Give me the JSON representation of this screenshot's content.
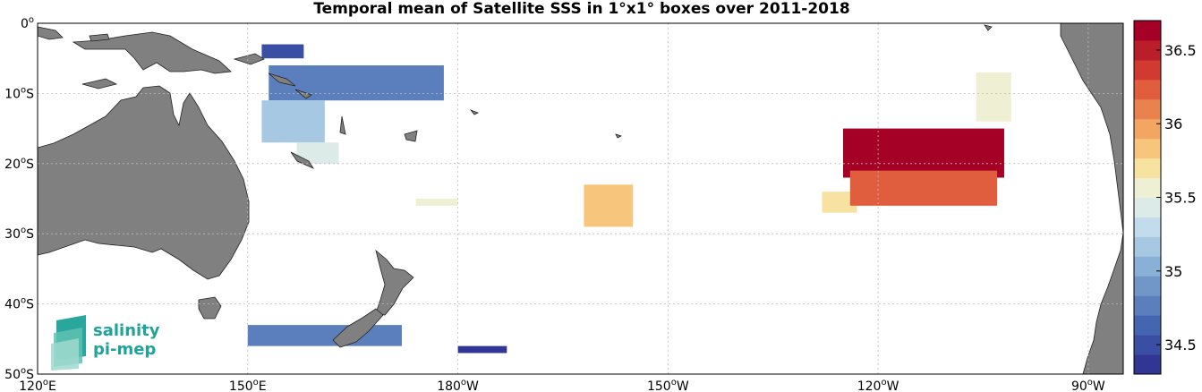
{
  "title": "Temporal mean of Satellite SSS in 1°x1° boxes over 2011-2018",
  "map": {
    "lon_range": [
      120,
      275
    ],
    "lat_range": [
      -50,
      0
    ],
    "lon_ticks": [
      {
        "lon": 120,
        "label": "120",
        "suffix": "E"
      },
      {
        "lon": 150,
        "label": "150",
        "suffix": "E"
      },
      {
        "lon": 180,
        "label": "180",
        "suffix": "W"
      },
      {
        "lon": 210,
        "label": "150",
        "suffix": "W"
      },
      {
        "lon": 240,
        "label": "120",
        "suffix": "W"
      },
      {
        "lon": 270,
        "label": "90",
        "suffix": "W"
      }
    ],
    "lat_ticks": [
      {
        "lat": 0,
        "label": "0",
        "suffix": ""
      },
      {
        "lat": -10,
        "label": "10",
        "suffix": "S"
      },
      {
        "lat": -20,
        "label": "20",
        "suffix": "S"
      },
      {
        "lat": -30,
        "label": "30",
        "suffix": "S"
      },
      {
        "lat": -40,
        "label": "40",
        "suffix": "S"
      },
      {
        "lat": -50,
        "label": "50",
        "suffix": "S"
      }
    ],
    "land_color": "#808080",
    "grid": "dotted"
  },
  "colorbar": {
    "min": 34.3,
    "max": 36.7,
    "ticks": [
      "34.5",
      "35",
      "35.5",
      "36",
      "36.5"
    ],
    "colors": [
      "#313695",
      "#3a4ea3",
      "#4465b0",
      "#5a7fbc",
      "#7197c8",
      "#89b0d6",
      "#a6c8e2",
      "#c3dceb",
      "#dcebe8",
      "#efefd4",
      "#f8e2a2",
      "#f7c67c",
      "#f2a662",
      "#ea8250",
      "#e05d3e",
      "#d03a30",
      "#bb1e2b",
      "#a50026"
    ]
  },
  "logo": {
    "line1": "salinity",
    "line2": "pi-mep",
    "color": "#1fa39a"
  },
  "chart_data": {
    "type": "heatmap",
    "title": "Temporal mean of Satellite SSS in 1°x1° boxes over 2011-2018",
    "colorbar_range": [
      34.3,
      36.7
    ],
    "regions": [
      {
        "lon": [
          152,
          158
        ],
        "lat": [
          -3,
          -5
        ],
        "value": 34.45
      },
      {
        "lon": [
          153,
          178
        ],
        "lat": [
          -6,
          -11
        ],
        "value": 34.8
      },
      {
        "lon": [
          152,
          161
        ],
        "lat": [
          -11,
          -17
        ],
        "value": 35.1
      },
      {
        "lon": [
          157,
          163
        ],
        "lat": [
          -17,
          -20
        ],
        "value": 35.4
      },
      {
        "lon": [
          150,
          172
        ],
        "lat": [
          -43,
          -46
        ],
        "value": 34.75
      },
      {
        "lon": [
          180,
          187
        ],
        "lat": [
          -46,
          -47
        ],
        "value": 34.4
      },
      {
        "lon": [
          174,
          180
        ],
        "lat": [
          -25,
          -26
        ],
        "value": 35.55
      },
      {
        "lon": [
          198,
          205
        ],
        "lat": [
          -23,
          -29
        ],
        "value": 35.9
      },
      {
        "lon": [
          232,
          237
        ],
        "lat": [
          -24,
          -27
        ],
        "value": 35.65
      },
      {
        "lon": [
          235,
          258
        ],
        "lat": [
          -15,
          -22
        ],
        "value": 36.6
      },
      {
        "lon": [
          236,
          257
        ],
        "lat": [
          -21,
          -26
        ],
        "value": 36.2
      },
      {
        "lon": [
          254,
          259
        ],
        "lat": [
          -7,
          -14
        ],
        "value": 35.6
      }
    ]
  }
}
